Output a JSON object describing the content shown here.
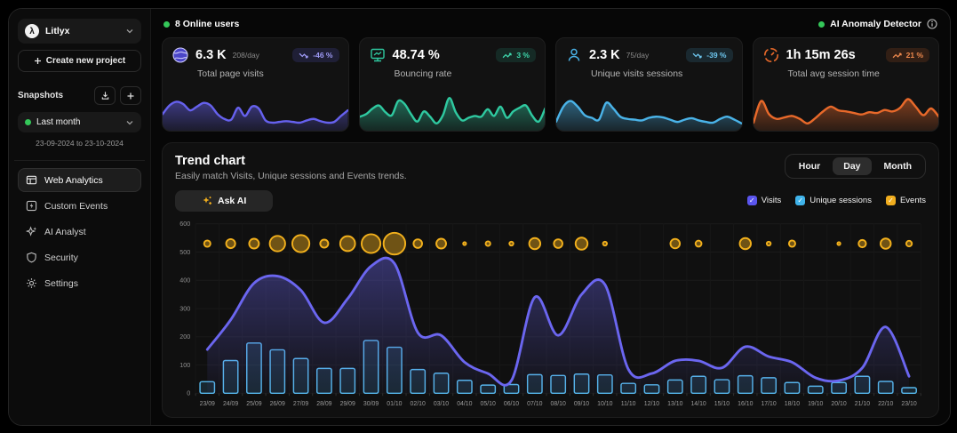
{
  "sidebar": {
    "project_name": "Litlyx",
    "create_project_label": "Create new project",
    "snapshots_label": "Snapshots",
    "snapshot_selected": "Last month",
    "snapshot_range": "23-09-2024 to 23-10-2024",
    "nav": [
      {
        "label": "Web Analytics",
        "active": true
      },
      {
        "label": "Custom Events",
        "active": false
      },
      {
        "label": "AI Analyst",
        "active": false
      },
      {
        "label": "Security",
        "active": false
      },
      {
        "label": "Settings",
        "active": false
      }
    ]
  },
  "topbar": {
    "online_users": "8 Online users",
    "anomaly_detector": "AI Anomaly Detector"
  },
  "stat_cards": [
    {
      "value": "6.3 K",
      "per_day": "208/day",
      "label": "Total page visits",
      "badge": "-46 %",
      "trend": "down",
      "accent": "#6661ee",
      "icon": "globe"
    },
    {
      "value": "48.74 %",
      "per_day": "",
      "label": "Bouncing rate",
      "badge": "3 %",
      "trend": "up",
      "accent": "#2fc9a0",
      "icon": "bounce"
    },
    {
      "value": "2.3 K",
      "per_day": "75/day",
      "label": "Unique visits sessions",
      "badge": "-39 %",
      "trend": "down",
      "accent": "#4ab3e8",
      "icon": "user"
    },
    {
      "value": "1h 15m 26s",
      "per_day": "",
      "label": "Total avg session time",
      "badge": "21 %",
      "trend": "up",
      "accent": "#e8692a",
      "icon": "timer"
    }
  ],
  "trend": {
    "title": "Trend chart",
    "subtitle": "Easily match Visits, Unique sessions and Events trends.",
    "ask_ai_label": "Ask AI",
    "range_tabs": [
      "Hour",
      "Day",
      "Month"
    ],
    "active_tab": "Day",
    "legend": [
      {
        "label": "Visits",
        "color": "#5a55ee"
      },
      {
        "label": "Unique sessions",
        "color": "#3fb3ea"
      },
      {
        "label": "Events",
        "color": "#f0ad1e"
      }
    ]
  },
  "chart_data": {
    "type": "line+bar+bubble",
    "title": "Trend chart",
    "x": [
      "23/09",
      "24/09",
      "25/09",
      "26/09",
      "27/09",
      "28/09",
      "29/09",
      "30/09",
      "01/10",
      "02/10",
      "03/10",
      "04/10",
      "05/10",
      "06/10",
      "07/10",
      "08/10",
      "09/10",
      "10/10",
      "11/10",
      "12/10",
      "13/10",
      "14/10",
      "15/10",
      "16/10",
      "17/10",
      "18/10",
      "19/10",
      "20/10",
      "21/10",
      "22/10",
      "23/10"
    ],
    "ylim": [
      0,
      600
    ],
    "y_ticks": [
      0,
      100,
      200,
      300,
      400,
      500,
      600
    ],
    "grid": true,
    "series": [
      {
        "name": "Visits",
        "type": "area-line",
        "color": "#6b66f0",
        "values": [
          155,
          260,
          390,
          415,
          365,
          250,
          335,
          450,
          460,
          215,
          205,
          110,
          70,
          45,
          340,
          205,
          350,
          385,
          85,
          70,
          115,
          115,
          90,
          165,
          130,
          110,
          55,
          45,
          90,
          235,
          60
        ]
      },
      {
        "name": "Unique sessions",
        "type": "bar",
        "color": "#55b7ea",
        "values": [
          41,
          116,
          178,
          154,
          123,
          88,
          88,
          187,
          163,
          84,
          71,
          46,
          29,
          31,
          66,
          63,
          68,
          65,
          35,
          30,
          47,
          60,
          48,
          62,
          55,
          38,
          25,
          38,
          60,
          42,
          20
        ]
      },
      {
        "name": "Events",
        "type": "bubble",
        "color": "#f2b01c",
        "bubble_row_value": 530,
        "bubble_radius_px": [
          3.7,
          5.3,
          5.7,
          9,
          10,
          4.7,
          8.7,
          11,
          12.7,
          5,
          5.7,
          1.7,
          2.7,
          2.3,
          6.5,
          5,
          7,
          2.3,
          0,
          0,
          5.5,
          3.5,
          0,
          6.5,
          2.3,
          3.7,
          0,
          1.7,
          4.3,
          6,
          3.3
        ]
      }
    ],
    "sparklines": [
      {
        "name": "Total page visits",
        "color": "#6661ee",
        "values": [
          35,
          58,
          68,
          62,
          45,
          55,
          65,
          58,
          35,
          22,
          20,
          52,
          30,
          55,
          50,
          18,
          12,
          14,
          16,
          14,
          12,
          18,
          22,
          16,
          12,
          14,
          30,
          45
        ]
      },
      {
        "name": "Bouncing rate",
        "color": "#2fc9a0",
        "values": [
          28,
          35,
          50,
          58,
          40,
          32,
          70,
          62,
          35,
          15,
          42,
          28,
          10,
          32,
          78,
          40,
          18,
          25,
          30,
          28,
          48,
          30,
          55,
          25,
          42,
          52,
          58,
          30,
          15,
          50
        ]
      },
      {
        "name": "Unique visits sessions",
        "color": "#4ab3e8",
        "values": [
          15,
          55,
          70,
          55,
          32,
          25,
          20,
          65,
          50,
          28,
          22,
          20,
          18,
          25,
          28,
          26,
          20,
          14,
          20,
          24,
          18,
          14,
          12,
          22,
          28,
          20,
          10
        ]
      },
      {
        "name": "Total avg session time",
        "color": "#e8692a",
        "values": [
          12,
          70,
          35,
          22,
          26,
          30,
          22,
          10,
          24,
          42,
          55,
          45,
          42,
          38,
          34,
          40,
          38,
          46,
          42,
          52,
          75,
          55,
          32,
          50,
          28
        ]
      }
    ]
  }
}
